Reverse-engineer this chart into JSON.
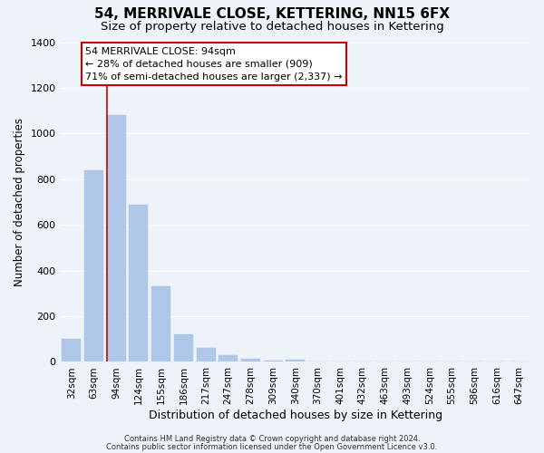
{
  "title": "54, MERRIVALE CLOSE, KETTERING, NN15 6FX",
  "subtitle": "Size of property relative to detached houses in Kettering",
  "xlabel": "Distribution of detached houses by size in Kettering",
  "ylabel": "Number of detached properties",
  "bar_labels": [
    "32sqm",
    "63sqm",
    "94sqm",
    "124sqm",
    "155sqm",
    "186sqm",
    "217sqm",
    "247sqm",
    "278sqm",
    "309sqm",
    "340sqm",
    "370sqm",
    "401sqm",
    "432sqm",
    "463sqm",
    "493sqm",
    "524sqm",
    "555sqm",
    "586sqm",
    "616sqm",
    "647sqm"
  ],
  "bar_values": [
    100,
    840,
    1080,
    690,
    330,
    120,
    60,
    30,
    15,
    5,
    10,
    0,
    0,
    0,
    0,
    0,
    0,
    0,
    0,
    0,
    0
  ],
  "bar_color": "#aec6e8",
  "redline_index": 2,
  "redline_color": "#cc0000",
  "ylim": [
    0,
    1400
  ],
  "yticks": [
    0,
    200,
    400,
    600,
    800,
    1000,
    1200,
    1400
  ],
  "annotation_title": "54 MERRIVALE CLOSE: 94sqm",
  "annotation_line1": "← 28% of detached houses are smaller (909)",
  "annotation_line2": "71% of semi-detached houses are larger (2,337) →",
  "annotation_box_color": "#ffffff",
  "annotation_box_edge": "#cc0000",
  "footnote1": "Contains HM Land Registry data © Crown copyright and database right 2024.",
  "footnote2": "Contains public sector information licensed under the Open Government Licence v3.0.",
  "background_color": "#eef2f9",
  "plot_background": "#eef2f9",
  "grid_color": "#ffffff",
  "title_fontsize": 11,
  "subtitle_fontsize": 9.5,
  "xlabel_fontsize": 9,
  "ylabel_fontsize": 8.5
}
